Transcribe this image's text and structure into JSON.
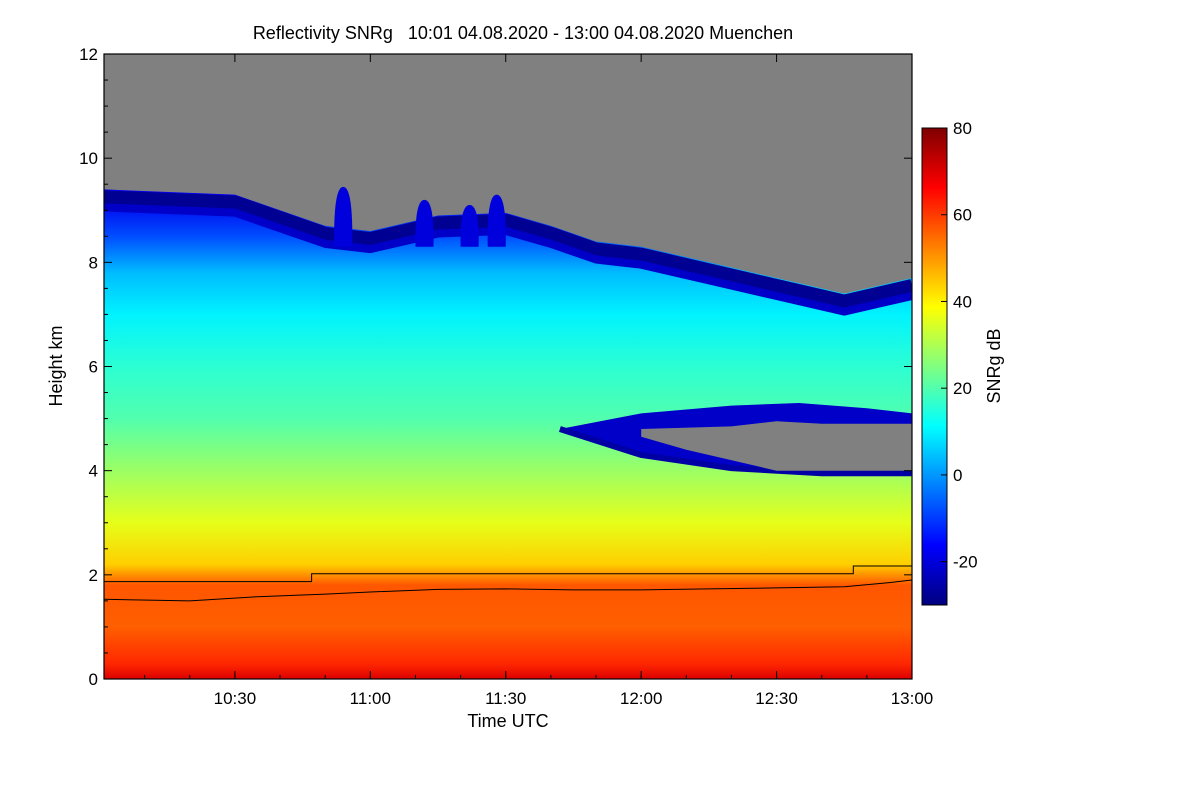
{
  "chart_data": {
    "type": "heatmap",
    "title": "Reflectivity SNRg   10:01 04.08.2020 - 13:00 04.08.2020 Muenchen",
    "xlabel": "Time UTC",
    "ylabel": "Height km",
    "colorbar_label": "SNRg dB",
    "xlim": [
      "10:01",
      "13:00"
    ],
    "ylim": [
      0,
      12
    ],
    "x_ticks": [
      {
        "value": "10:30",
        "label": "10:30"
      },
      {
        "value": "11:00",
        "label": "11:00"
      },
      {
        "value": "11:30",
        "label": "11:30"
      },
      {
        "value": "12:00",
        "label": "12:00"
      },
      {
        "value": "12:30",
        "label": "12:30"
      },
      {
        "value": "13:00",
        "label": "13:00"
      }
    ],
    "y_ticks": [
      {
        "value": 0,
        "label": "0"
      },
      {
        "value": 2,
        "label": "2"
      },
      {
        "value": 4,
        "label": "4"
      },
      {
        "value": 6,
        "label": "6"
      },
      {
        "value": 8,
        "label": "8"
      },
      {
        "value": 10,
        "label": "10"
      },
      {
        "value": 12,
        "label": "12"
      }
    ],
    "colorbar_range": [
      -30,
      80
    ],
    "colorbar_ticks": [
      {
        "value": -20,
        "label": "-20"
      },
      {
        "value": 0,
        "label": "0"
      },
      {
        "value": 20,
        "label": "20"
      },
      {
        "value": 40,
        "label": "40"
      },
      {
        "value": 60,
        "label": "60"
      },
      {
        "value": 80,
        "label": "80"
      }
    ],
    "colormap": [
      "#00007f",
      "#0000ff",
      "#0080ff",
      "#00ffff",
      "#80ff80",
      "#ffff00",
      "#ff8000",
      "#ff0000",
      "#7f0000"
    ],
    "no_signal_color": "#808080",
    "echo_top_km": [
      [
        "10:01",
        9.4
      ],
      [
        "10:30",
        9.3
      ],
      [
        "10:50",
        8.7
      ],
      [
        "11:00",
        8.6
      ],
      [
        "11:15",
        8.9
      ],
      [
        "11:30",
        8.95
      ],
      [
        "11:40",
        8.7
      ],
      [
        "11:50",
        8.4
      ],
      [
        "12:00",
        8.3
      ],
      [
        "12:15",
        8.0
      ],
      [
        "12:30",
        7.7
      ],
      [
        "12:45",
        7.4
      ],
      [
        "13:00",
        7.7
      ]
    ],
    "echo_top_peaks": [
      {
        "time": "10:54",
        "top_km": 9.45
      },
      {
        "time": "11:12",
        "top_km": 9.2
      },
      {
        "time": "11:22",
        "top_km": 9.1
      },
      {
        "time": "11:28",
        "top_km": 9.3
      }
    ],
    "clear_gap": {
      "upper_edge_km": [
        [
          "11:42",
          4.8
        ],
        [
          "12:00",
          5.1
        ],
        [
          "12:20",
          5.25
        ],
        [
          "12:35",
          5.3
        ],
        [
          "12:50",
          5.2
        ],
        [
          "13:00",
          5.1
        ]
      ],
      "lower_edge_km": [
        [
          "11:42",
          4.8
        ],
        [
          "12:00",
          4.3
        ],
        [
          "12:20",
          4.05
        ],
        [
          "12:40",
          3.95
        ],
        [
          "13:00",
          3.95
        ]
      ],
      "clear_from_km": [
        [
          "12:00",
          4.65
        ],
        [
          "12:10",
          4.4
        ],
        [
          "12:30",
          4.0
        ],
        [
          "13:00",
          4.0
        ]
      ],
      "clear_to_km": [
        [
          "12:00",
          4.8
        ],
        [
          "12:20",
          4.85
        ],
        [
          "12:30",
          4.95
        ],
        [
          "12:40",
          4.9
        ],
        [
          "13:00",
          4.9
        ]
      ]
    },
    "snr_profile_db": [
      {
        "height_km": 0.0,
        "snr_db": 70
      },
      {
        "height_km": 0.3,
        "snr_db": 62
      },
      {
        "height_km": 1.0,
        "snr_db": 56
      },
      {
        "height_km": 1.8,
        "snr_db": 57
      },
      {
        "height_km": 2.2,
        "snr_db": 44
      },
      {
        "height_km": 3.0,
        "snr_db": 36
      },
      {
        "height_km": 4.0,
        "snr_db": 28
      },
      {
        "height_km": 5.0,
        "snr_db": 20
      },
      {
        "height_km": 6.0,
        "snr_db": 16
      },
      {
        "height_km": 7.0,
        "snr_db": 10
      },
      {
        "height_km": 7.8,
        "snr_db": 4
      },
      {
        "height_km": 8.5,
        "snr_db": -8
      },
      {
        "height_km": 9.2,
        "snr_db": -18
      }
    ],
    "line_series": [
      {
        "points": [
          [
            "10:01",
            1.87
          ],
          [
            "10:47",
            1.87
          ],
          [
            "10:47",
            2.02
          ],
          [
            "12:47",
            2.02
          ],
          [
            "12:47",
            2.17
          ],
          [
            "13:00",
            2.17
          ]
        ]
      },
      {
        "points": [
          [
            "10:01",
            1.53
          ],
          [
            "10:20",
            1.5
          ],
          [
            "10:35",
            1.58
          ],
          [
            "10:50",
            1.63
          ],
          [
            "11:00",
            1.67
          ],
          [
            "11:15",
            1.72
          ],
          [
            "11:30",
            1.73
          ],
          [
            "11:45",
            1.71
          ],
          [
            "12:00",
            1.71
          ],
          [
            "12:15",
            1.73
          ],
          [
            "12:30",
            1.75
          ],
          [
            "12:45",
            1.77
          ],
          [
            "12:55",
            1.85
          ],
          [
            "13:00",
            1.9
          ]
        ]
      }
    ]
  }
}
